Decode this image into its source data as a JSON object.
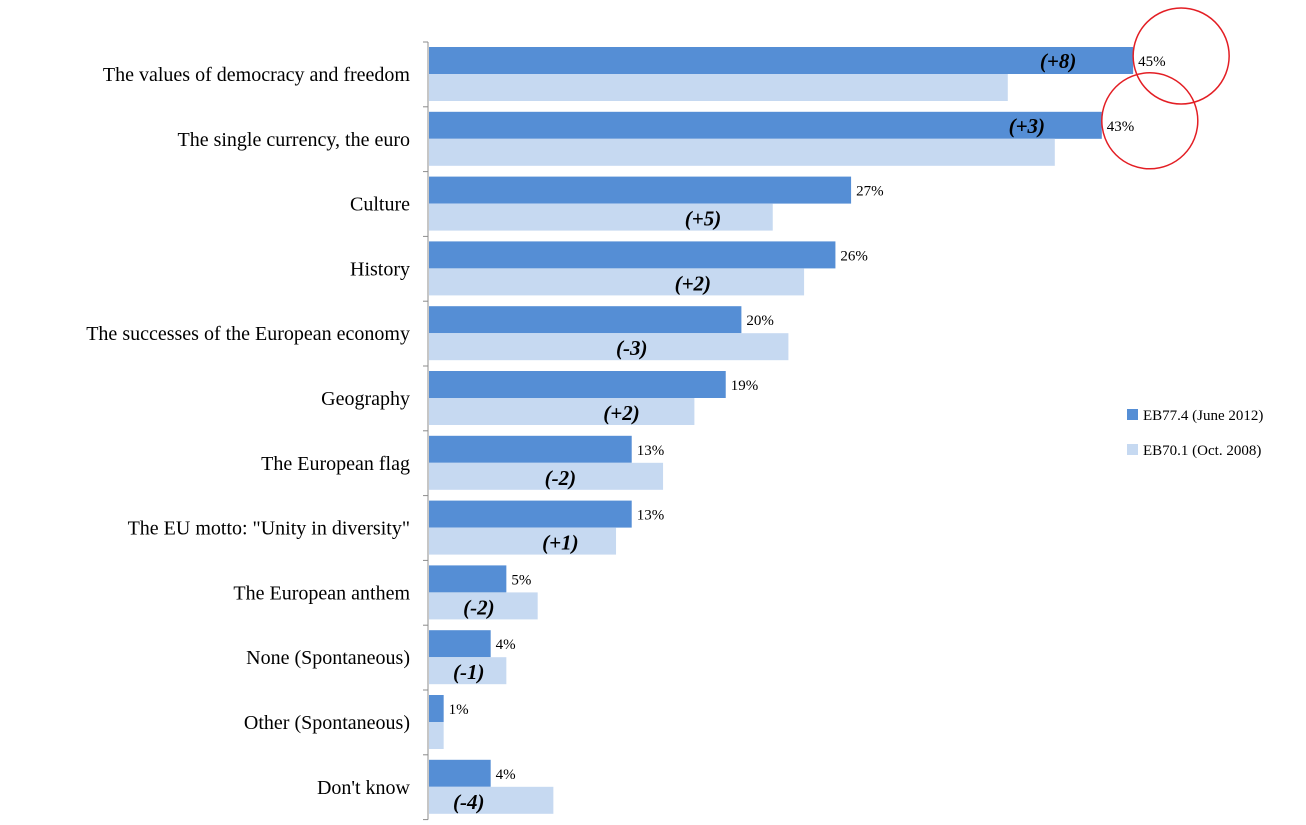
{
  "chart_data": {
    "type": "bar",
    "orientation": "horizontal",
    "categories": [
      "The values of democracy and freedom",
      "The single currency, the euro",
      "Culture",
      "History",
      "The successes of the European economy",
      "Geography",
      "The European flag",
      "The EU motto: \"Unity in diversity\"",
      "The European anthem",
      "None (Spontaneous)",
      "Other (Spontaneous)",
      "Don't know"
    ],
    "series": [
      {
        "name": "EB77.4 (June 2012)",
        "color": "#558ED5",
        "values": [
          45,
          43,
          27,
          26,
          20,
          19,
          13,
          13,
          5,
          4,
          1,
          4
        ],
        "value_labels": [
          "45%",
          "43%",
          "27%",
          "26%",
          "20%",
          "19%",
          "13%",
          "13%",
          "5%",
          "4%",
          "1%",
          "4%"
        ]
      },
      {
        "name": "EB70.1 (Oct. 2008)",
        "color": "#C6D9F1",
        "values": [
          37,
          40,
          22,
          24,
          23,
          17,
          15,
          12,
          7,
          5,
          1,
          8
        ]
      }
    ],
    "change_labels": [
      "(+8)",
      "(+3)",
      "(+5)",
      "(+2)",
      "(-3)",
      "(+2)",
      "(-2)",
      "(+1)",
      "(-2)",
      "(-1)",
      "",
      "(-4)"
    ],
    "highlighted": [
      "The values of democracy and freedom",
      "The single currency, the euro"
    ],
    "highlight_color": "#E31E24",
    "xlim": [
      0,
      50
    ],
    "legend_position": "right",
    "grid": false
  }
}
